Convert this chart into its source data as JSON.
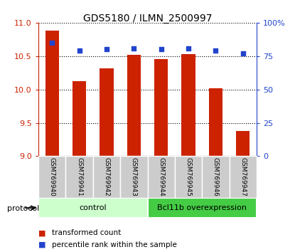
{
  "title": "GDS5180 / ILMN_2500997",
  "samples": [
    "GSM769940",
    "GSM769941",
    "GSM769942",
    "GSM769943",
    "GSM769944",
    "GSM769945",
    "GSM769946",
    "GSM769947"
  ],
  "transformed_counts": [
    10.88,
    10.12,
    10.32,
    10.52,
    10.45,
    10.53,
    10.02,
    9.38
  ],
  "percentile_ranks": [
    85,
    79,
    80,
    81,
    80,
    81,
    79,
    77
  ],
  "bar_color": "#cc2200",
  "dot_color": "#2244cc",
  "ylim_left": [
    9,
    11
  ],
  "ylim_right": [
    0,
    100
  ],
  "yticks_left": [
    9,
    9.5,
    10,
    10.5,
    11
  ],
  "yticks_right": [
    0,
    25,
    50,
    75,
    100
  ],
  "ytick_labels_right": [
    "0",
    "25",
    "50",
    "75",
    "100%"
  ],
  "control_color": "#ccffcc",
  "overexp_color": "#44cc44",
  "sample_box_color": "#cccccc",
  "control_label": "control",
  "overexp_label": "Bcl11b overexpression",
  "protocol_label": "protocol",
  "legend_bar_label": "transformed count",
  "legend_dot_label": "percentile rank within the sample",
  "control_samples": 4,
  "overexp_samples": 4,
  "bar_width": 0.5,
  "bar_bottom": 9.0
}
